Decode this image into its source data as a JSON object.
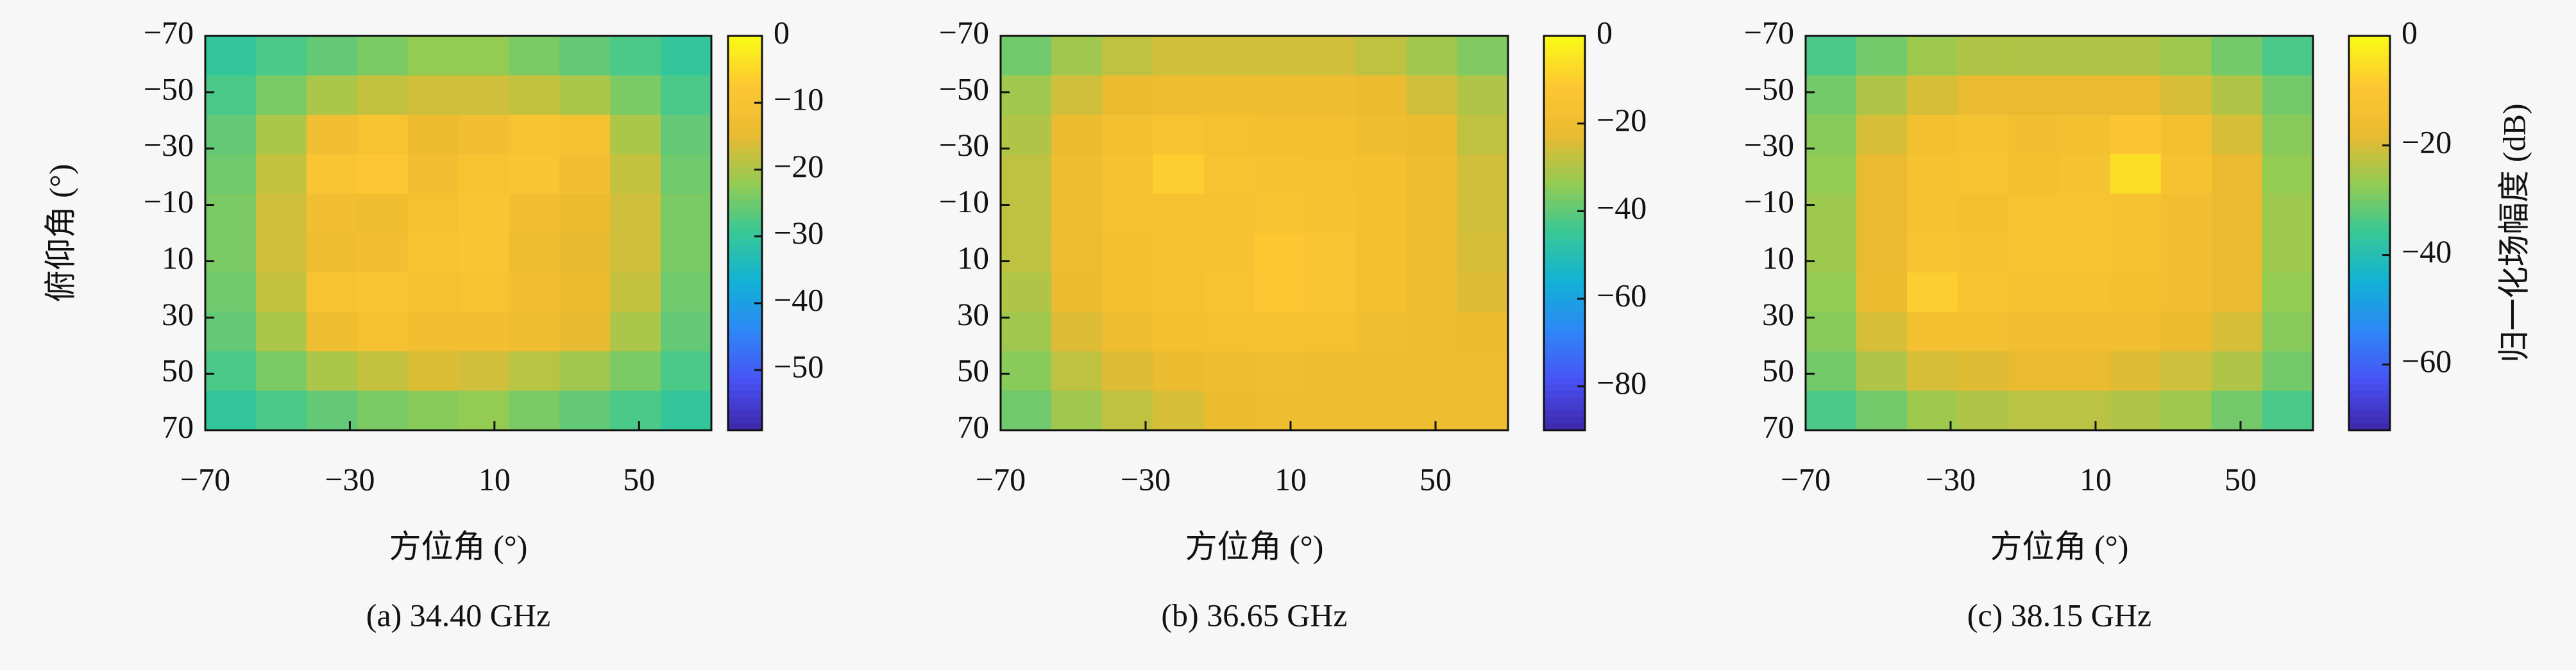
{
  "chart_data": [
    {
      "type": "heatmap",
      "caption": "(a) 34.40 GHz",
      "xlabel": "方位角 (°)",
      "ylabel": "俯仰角 (°)",
      "x": [
        -63,
        -49,
        -35,
        -21,
        -7,
        7,
        21,
        35,
        49,
        63
      ],
      "y": [
        -63,
        -49,
        -35,
        -21,
        -7,
        7,
        21,
        35,
        49,
        63
      ],
      "xlim": [
        -70,
        70
      ],
      "ylim": [
        -70,
        70
      ],
      "y_inverted": true,
      "xticks": [
        {
          "value": -70,
          "label": "−70"
        },
        {
          "value": -30,
          "label": "−30"
        },
        10,
        50
      ],
      "yticks": [
        {
          "value": -70,
          "label": "−70"
        },
        {
          "value": -50,
          "label": "−50"
        },
        {
          "value": -30,
          "label": "−30"
        },
        {
          "value": -10,
          "label": "−10"
        },
        10,
        30,
        50,
        70
      ],
      "clim": [
        -59,
        0
      ],
      "colormap": "parula",
      "cticks": [
        0,
        {
          "value": -10,
          "label": "−10"
        },
        {
          "value": -20,
          "label": "−20"
        },
        {
          "value": -30,
          "label": "−30"
        },
        {
          "value": -40,
          "label": "−40"
        },
        {
          "value": -50,
          "label": "−50"
        }
      ],
      "z": [
        [
          -30,
          -28,
          -26,
          -24,
          -22,
          -22,
          -24,
          -26,
          -28,
          -30
        ],
        [
          -28,
          -24,
          -20,
          -18,
          -17,
          -17,
          -18,
          -20,
          -24,
          -28
        ],
        [
          -26,
          -20,
          -12,
          -10,
          -14,
          -12,
          -10,
          -11,
          -20,
          -26
        ],
        [
          -25,
          -18,
          -9,
          -8,
          -12,
          -10,
          -9,
          -12,
          -18,
          -25
        ],
        [
          -24,
          -17,
          -12,
          -13,
          -11,
          -9,
          -12,
          -14,
          -17,
          -24
        ],
        [
          -24,
          -17,
          -13,
          -12,
          -10,
          -9,
          -13,
          -15,
          -17,
          -24
        ],
        [
          -25,
          -18,
          -10,
          -9,
          -11,
          -10,
          -12,
          -14,
          -18,
          -25
        ],
        [
          -26,
          -20,
          -13,
          -11,
          -12,
          -12,
          -13,
          -15,
          -20,
          -26
        ],
        [
          -28,
          -24,
          -20,
          -18,
          -16,
          -17,
          -19,
          -21,
          -24,
          -28
        ],
        [
          -30,
          -28,
          -26,
          -24,
          -23,
          -22,
          -24,
          -26,
          -28,
          -30
        ]
      ]
    },
    {
      "type": "heatmap",
      "caption": "(b) 36.65 GHz",
      "xlabel": "方位角 (°)",
      "x": [
        -63,
        -49,
        -35,
        -21,
        -7,
        7,
        21,
        35,
        49,
        63
      ],
      "y": [
        -63,
        -49,
        -35,
        -21,
        -7,
        7,
        21,
        35,
        49,
        63
      ],
      "xlim": [
        -70,
        70
      ],
      "ylim": [
        -70,
        70
      ],
      "y_inverted": true,
      "xticks": [
        {
          "value": -70,
          "label": "−70"
        },
        {
          "value": -30,
          "label": "−30"
        },
        10,
        50
      ],
      "yticks": [
        {
          "value": -70,
          "label": "−70"
        },
        {
          "value": -50,
          "label": "−50"
        },
        {
          "value": -30,
          "label": "−30"
        },
        {
          "value": -10,
          "label": "−10"
        },
        10,
        30,
        50,
        70
      ],
      "clim": [
        -90,
        0
      ],
      "colormap": "parula",
      "cticks": [
        0,
        {
          "value": -20,
          "label": "−20"
        },
        {
          "value": -40,
          "label": "−40"
        },
        {
          "value": -60,
          "label": "−60"
        },
        {
          "value": -80,
          "label": "−80"
        }
      ],
      "z": [
        [
          -38,
          -32,
          -28,
          -26,
          -26,
          -26,
          -26,
          -28,
          -32,
          -36
        ],
        [
          -32,
          -26,
          -22,
          -20,
          -20,
          -20,
          -20,
          -22,
          -26,
          -30
        ],
        [
          -30,
          -22,
          -18,
          -15,
          -17,
          -18,
          -18,
          -20,
          -22,
          -28
        ],
        [
          -28,
          -20,
          -16,
          -10,
          -15,
          -16,
          -17,
          -18,
          -20,
          -26
        ],
        [
          -28,
          -20,
          -17,
          -16,
          -16,
          -15,
          -16,
          -18,
          -20,
          -26
        ],
        [
          -28,
          -21,
          -18,
          -17,
          -16,
          -12,
          -14,
          -18,
          -21,
          -25
        ],
        [
          -30,
          -22,
          -18,
          -17,
          -15,
          -12,
          -14,
          -18,
          -20,
          -24
        ],
        [
          -32,
          -24,
          -20,
          -18,
          -17,
          -16,
          -17,
          -19,
          -20,
          -22
        ],
        [
          -35,
          -28,
          -24,
          -22,
          -20,
          -19,
          -20,
          -20,
          -20,
          -20
        ],
        [
          -38,
          -32,
          -28,
          -25,
          -22,
          -20,
          -20,
          -20,
          -20,
          -20
        ]
      ]
    },
    {
      "type": "heatmap",
      "caption": "(c) 38.15 GHz",
      "xlabel": "方位角 (°)",
      "colorbar_label": "归一化场幅度 (dB)",
      "x": [
        -63,
        -49,
        -35,
        -21,
        -7,
        7,
        21,
        35,
        49,
        63
      ],
      "y": [
        -63,
        -49,
        -35,
        -21,
        -7,
        7,
        21,
        35,
        49,
        63
      ],
      "xlim": [
        -70,
        70
      ],
      "ylim": [
        -70,
        70
      ],
      "y_inverted": true,
      "xticks": [
        {
          "value": -70,
          "label": "−70"
        },
        {
          "value": -30,
          "label": "−30"
        },
        10,
        50
      ],
      "yticks": [
        {
          "value": -70,
          "label": "−70"
        },
        {
          "value": -50,
          "label": "−50"
        },
        {
          "value": -30,
          "label": "−30"
        },
        {
          "value": -10,
          "label": "−10"
        },
        10,
        30,
        50,
        70
      ],
      "clim": [
        -72,
        0
      ],
      "colormap": "parula",
      "cticks": [
        0,
        {
          "value": -20,
          "label": "−20"
        },
        {
          "value": -40,
          "label": "−40"
        },
        {
          "value": -60,
          "label": "−60"
        }
      ],
      "z": [
        [
          -34,
          -30,
          -26,
          -24,
          -24,
          -24,
          -24,
          -26,
          -30,
          -34
        ],
        [
          -30,
          -24,
          -20,
          -18,
          -18,
          -18,
          -18,
          -20,
          -24,
          -30
        ],
        [
          -28,
          -20,
          -14,
          -13,
          -15,
          -14,
          -10,
          -14,
          -20,
          -28
        ],
        [
          -27,
          -18,
          -13,
          -12,
          -14,
          -13,
          -5,
          -13,
          -18,
          -27
        ],
        [
          -26,
          -18,
          -13,
          -14,
          -12,
          -12,
          -13,
          -15,
          -18,
          -26
        ],
        [
          -26,
          -18,
          -12,
          -13,
          -12,
          -12,
          -13,
          -15,
          -18,
          -26
        ],
        [
          -27,
          -17,
          -8,
          -12,
          -13,
          -13,
          -14,
          -15,
          -18,
          -27
        ],
        [
          -28,
          -20,
          -14,
          -14,
          -15,
          -15,
          -15,
          -17,
          -20,
          -28
        ],
        [
          -30,
          -24,
          -20,
          -19,
          -18,
          -18,
          -19,
          -21,
          -24,
          -30
        ],
        [
          -34,
          -30,
          -26,
          -24,
          -23,
          -23,
          -24,
          -26,
          -30,
          -34
        ]
      ]
    }
  ]
}
